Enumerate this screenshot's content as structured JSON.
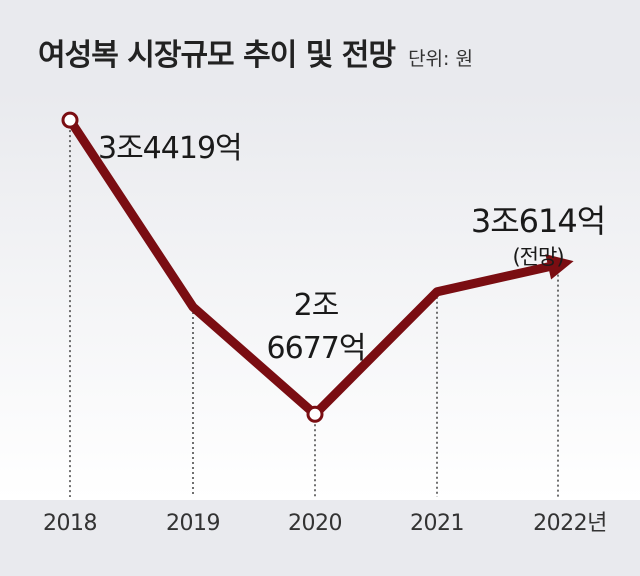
{
  "chart_data": {
    "type": "line",
    "title": "여성복 시장규모 추이 및 전망",
    "unit_label": "단위: 원",
    "categories": [
      "2018",
      "2019",
      "2020",
      "2021",
      "2022년"
    ],
    "series": [
      {
        "values": [
          34419,
          null,
          26677,
          null,
          30614
        ]
      }
    ],
    "estimated_values": {
      "2019": 29500,
      "2021": 29900
    },
    "annotations": {
      "p2018": "3조4419억",
      "p2020_line1": "2조",
      "p2020_line2": "6677억",
      "p2022": "3조614억",
      "p2022_note": "(전망)"
    },
    "grid": false,
    "colors": {
      "line": "#7a0d12",
      "background": "#e9eaee"
    }
  }
}
